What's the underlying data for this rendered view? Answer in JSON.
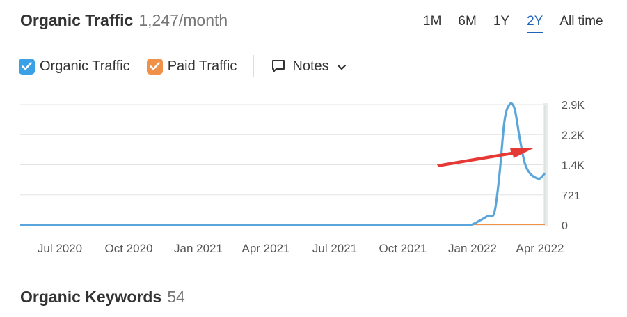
{
  "header": {
    "title": "Organic Traffic",
    "value": "1,247/month"
  },
  "ranges": [
    {
      "label": "1M",
      "active": false
    },
    {
      "label": "6M",
      "active": false
    },
    {
      "label": "1Y",
      "active": false
    },
    {
      "label": "2Y",
      "active": true
    },
    {
      "label": "All time",
      "active": false
    }
  ],
  "legend": {
    "organic_label": "Organic Traffic",
    "paid_label": "Paid Traffic",
    "notes_label": "Notes",
    "organic_color": "#3aa1e6",
    "paid_color": "#f0914a",
    "organic_icon": "check-icon",
    "paid_icon": "check-icon",
    "notes_icon": "comment-icon",
    "notes_chevron_icon": "chevron-down-icon"
  },
  "chart_data": {
    "type": "line",
    "y_tick_labels": [
      "2.9K",
      "2.2K",
      "1.4K",
      "721",
      "0"
    ],
    "x_tick_labels": [
      "Jul 2020",
      "Oct 2020",
      "Jan 2021",
      "Apr 2021",
      "Jul 2021",
      "Oct 2021",
      "Jan 2022",
      "Apr 2022"
    ],
    "ylim": [
      0,
      2900
    ],
    "grid": true,
    "series": [
      {
        "name": "Organic Traffic",
        "color": "#5aa6da",
        "x": [
          "2020-05-01",
          "2020-07-01",
          "2020-10-01",
          "2021-01-01",
          "2021-04-01",
          "2021-07-01",
          "2021-10-01",
          "2022-01-01",
          "2022-01-15",
          "2022-01-29",
          "2022-02-08",
          "2022-02-17",
          "2022-02-24",
          "2022-03-03",
          "2022-03-10",
          "2022-03-17",
          "2022-03-24",
          "2022-03-31",
          "2022-04-07",
          "2022-04-14",
          "2022-04-21",
          "2022-04-28"
        ],
        "values": [
          0,
          0,
          0,
          0,
          0,
          0,
          0,
          0,
          0,
          120,
          220,
          300,
          1200,
          2500,
          2900,
          2800,
          2100,
          1500,
          1250,
          1150,
          1120,
          1247
        ]
      },
      {
        "name": "Paid Traffic",
        "color": "#f0914a",
        "x": [
          "2020-05-01",
          "2022-04-28"
        ],
        "values": [
          0,
          0
        ]
      }
    ],
    "annotation": {
      "type": "arrow",
      "color": "#e53935"
    }
  },
  "keywords": {
    "title": "Organic Keywords",
    "count": "54"
  }
}
